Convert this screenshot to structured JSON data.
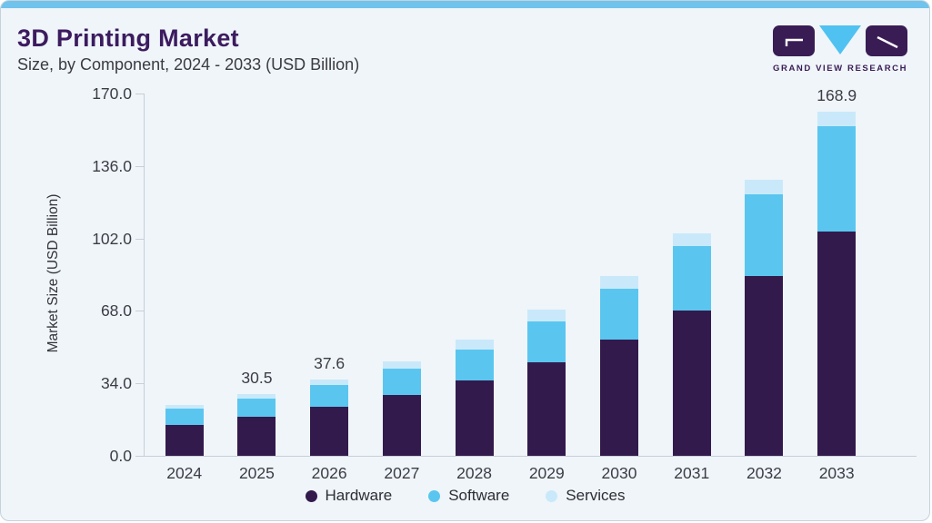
{
  "page": {
    "title": "3D Printing Market",
    "subtitle": "Size, by Component, 2024 - 2033 (USD Billion)",
    "logo": {
      "text": "GRAND VIEW RESEARCH"
    }
  },
  "colors": {
    "accent_bar": "#6fc3ec",
    "background": "#eff5f9",
    "title_text": "#3c1b5f",
    "axis_line": "#c9ced8",
    "hardware": "#331a4c",
    "software": "#5ac6f0",
    "services": "#c9e9fa"
  },
  "chart_data": {
    "type": "bar",
    "stacked": true,
    "title": "3D Printing Market Size, by Component, 2024 - 2033 (USD Billion)",
    "xlabel": "",
    "ylabel": "Market Size (USD Billion)",
    "ylim": [
      0,
      170
    ],
    "yticks": [
      170.0,
      136.0,
      102.0,
      68.0,
      34.0,
      0.0
    ],
    "ytick_labels": [
      "170.0",
      "136.0",
      "102.0",
      "68.0",
      "34.0",
      "0.0"
    ],
    "grid": false,
    "legend_position": "bottom",
    "categories": [
      "2024",
      "2025",
      "2026",
      "2027",
      "2028",
      "2029",
      "2030",
      "2031",
      "2032",
      "2033"
    ],
    "series": [
      {
        "name": "Hardware",
        "color": "#331a4c",
        "values": [
          15.3,
          19.4,
          24.0,
          30.0,
          37.1,
          46.1,
          57.2,
          71.3,
          88.1,
          110.1
        ]
      },
      {
        "name": "Software",
        "color": "#5ac6f0",
        "values": [
          7.7,
          8.6,
          10.9,
          12.6,
          15.2,
          19.8,
          25.0,
          31.7,
          40.4,
          51.6
        ]
      },
      {
        "name": "Services",
        "color": "#c9e9fa",
        "values": [
          2.1,
          2.5,
          2.7,
          3.6,
          4.9,
          5.7,
          5.9,
          6.4,
          7.1,
          7.2
        ]
      }
    ],
    "totals": [
      25.1,
      30.5,
      37.6,
      46.2,
      57.2,
      71.6,
      88.1,
      109.4,
      135.6,
      168.9
    ],
    "value_labels": [
      "",
      "30.5",
      "37.6",
      "",
      "",
      "",
      "",
      "",
      "",
      "168.9"
    ]
  }
}
